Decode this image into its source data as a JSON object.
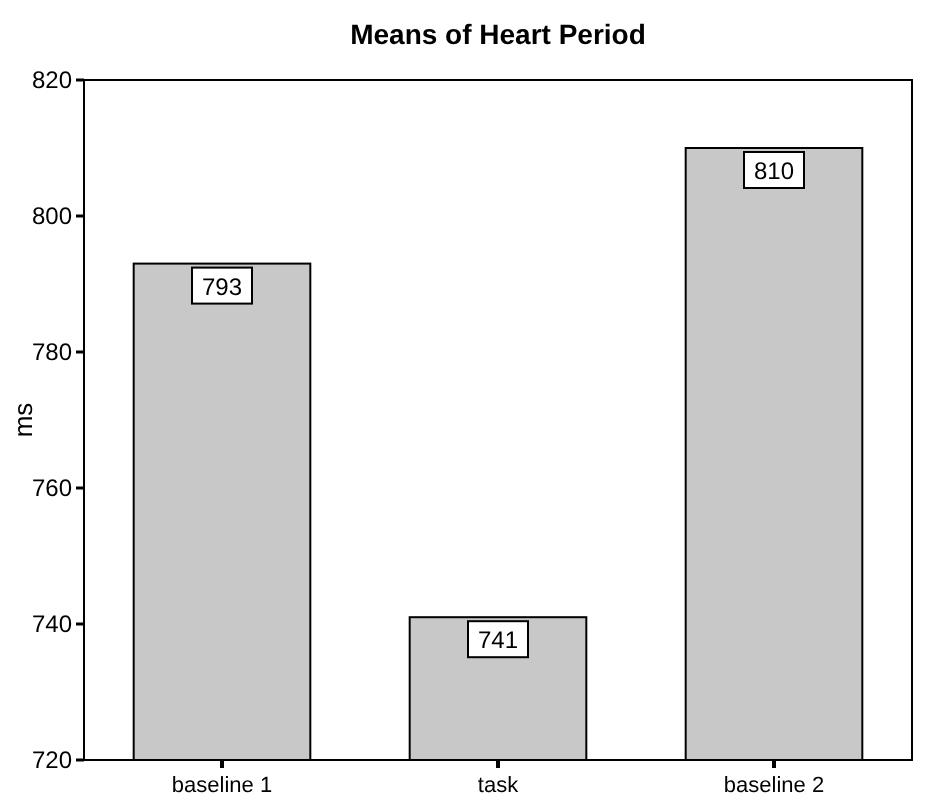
{
  "chart_data": {
    "type": "bar",
    "title": "Means of Heart Period",
    "ylabel": "ms",
    "categories": [
      "baseline 1",
      "task",
      "baseline 2"
    ],
    "values": [
      793,
      741,
      810
    ],
    "color": "#c8c8c8",
    "ylim": [
      720,
      820
    ],
    "yticks": [
      720,
      740,
      760,
      780,
      800,
      820
    ],
    "grid": false,
    "data_labels": true
  }
}
